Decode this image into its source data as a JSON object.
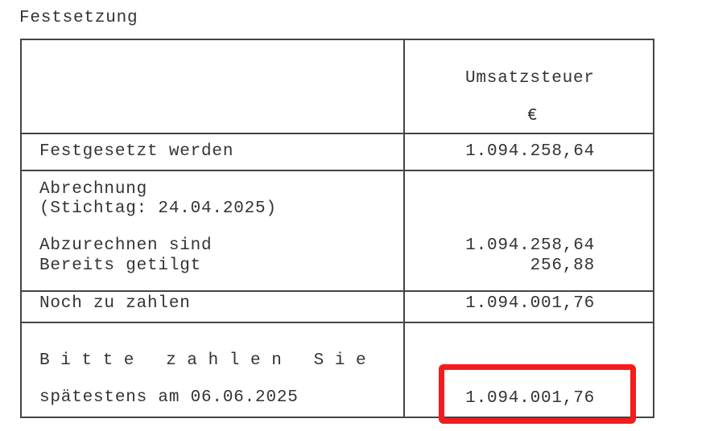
{
  "section_title": "Festsetzung",
  "table": {
    "column_header": "Umsatzsteuer",
    "currency": "€",
    "rows": {
      "festgesetzt": {
        "label": "Festgesetzt werden",
        "value": "1.094.258,64"
      },
      "abrechnung": {
        "label": "Abrechnung",
        "sublabel": "(Stichtag: 24.04.2025)"
      },
      "abzurechnen": {
        "label": "Abzurechnen sind",
        "value": "1.094.258,64"
      },
      "getilgt": {
        "label": "Bereits getilgt",
        "value": "256,88"
      },
      "noch": {
        "label": "Noch zu zahlen",
        "value": "1.094.001,76"
      },
      "bitte": {
        "label": "Bitte zahlen Sie",
        "sublabel": "spätestens am 06.06.2025",
        "value": "1.094.001,76"
      }
    }
  },
  "highlight_color": "#f41c1c"
}
